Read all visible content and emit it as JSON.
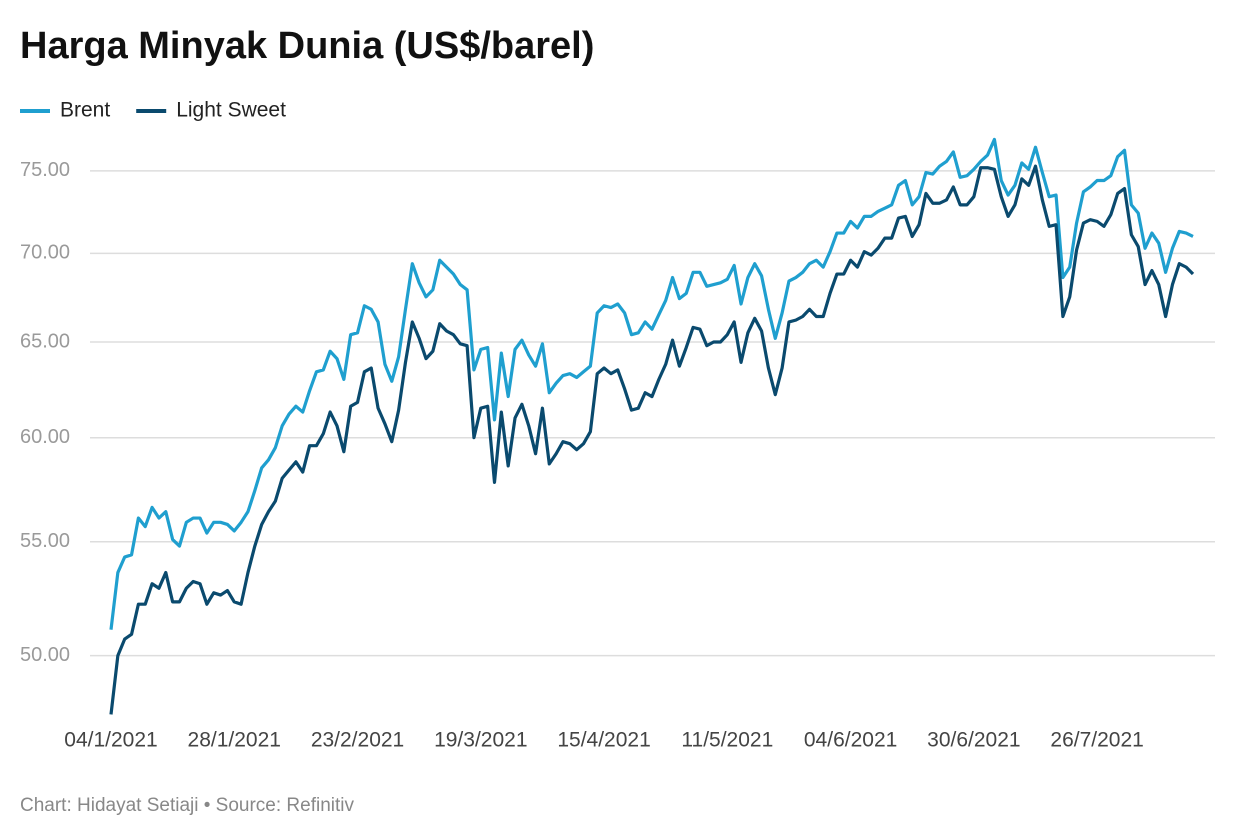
{
  "chart_data": {
    "type": "line",
    "title": "Harga Minyak Dunia (US$/barel)",
    "source": "Chart: Hidayat Setiaji • Source: Refinitiv",
    "legend": "top-left",
    "log_scale": true,
    "grid": true,
    "categories": [
      "04/1/2021",
      null,
      null,
      null,
      null,
      null,
      null,
      null,
      null,
      null,
      null,
      null,
      null,
      null,
      null,
      null,
      null,
      null,
      "28/1/2021",
      null,
      null,
      null,
      null,
      null,
      null,
      null,
      null,
      null,
      null,
      null,
      null,
      null,
      null,
      null,
      null,
      null,
      "23/2/2021",
      null,
      null,
      null,
      null,
      null,
      null,
      null,
      null,
      null,
      null,
      null,
      null,
      null,
      null,
      null,
      null,
      null,
      "19/3/2021",
      null,
      null,
      null,
      null,
      null,
      null,
      null,
      null,
      null,
      null,
      null,
      null,
      null,
      null,
      null,
      null,
      null,
      "15/4/2021",
      null,
      null,
      null,
      null,
      null,
      null,
      null,
      null,
      null,
      null,
      null,
      null,
      null,
      null,
      null,
      null,
      null,
      "11/5/2021",
      null,
      null,
      null,
      null,
      null,
      null,
      null,
      null,
      null,
      null,
      null,
      null,
      null,
      null,
      null,
      null,
      null,
      "04/6/2021",
      null,
      null,
      null,
      null,
      null,
      null,
      null,
      null,
      null,
      null,
      null,
      null,
      null,
      null,
      null,
      null,
      null,
      "30/6/2021",
      null,
      null,
      null,
      null,
      null,
      null,
      null,
      null,
      null,
      null,
      null,
      null,
      null,
      null,
      null,
      null,
      null,
      "26/7/2021",
      null,
      null,
      null,
      null,
      null,
      null,
      null,
      null,
      null,
      null,
      null,
      null,
      null,
      null
    ],
    "series": [
      {
        "name": "Brent",
        "color": "#1f9fcf",
        "values": [
          51.1,
          53.6,
          54.3,
          54.4,
          56.1,
          55.7,
          56.6,
          56.1,
          56.4,
          55.1,
          54.8,
          55.9,
          56.1,
          56.1,
          55.4,
          55.9,
          55.9,
          55.8,
          55.5,
          55.9,
          56.4,
          57.4,
          58.5,
          58.9,
          59.5,
          60.6,
          61.2,
          61.6,
          61.3,
          62.4,
          63.4,
          63.5,
          64.5,
          64.1,
          63.0,
          65.4,
          65.5,
          67.0,
          66.8,
          66.1,
          63.8,
          62.9,
          64.2,
          66.8,
          69.4,
          68.3,
          67.5,
          67.9,
          69.6,
          69.2,
          68.8,
          68.2,
          67.9,
          63.5,
          64.6,
          64.7,
          60.9,
          64.4,
          62.1,
          64.6,
          65.1,
          64.3,
          63.7,
          64.9,
          62.3,
          62.8,
          63.2,
          63.3,
          63.1,
          63.4,
          63.7,
          66.6,
          67.0,
          66.9,
          67.1,
          66.6,
          65.4,
          65.5,
          66.1,
          65.7,
          66.5,
          67.3,
          68.6,
          67.4,
          67.7,
          68.9,
          68.9,
          68.1,
          68.2,
          68.3,
          68.5,
          69.3,
          67.1,
          68.6,
          69.4,
          68.7,
          66.8,
          65.2,
          66.6,
          68.4,
          68.6,
          68.9,
          69.4,
          69.6,
          69.2,
          70.1,
          71.2,
          71.2,
          71.9,
          71.5,
          72.2,
          72.2,
          72.5,
          72.7,
          72.9,
          74.1,
          74.4,
          72.9,
          73.4,
          74.9,
          74.8,
          75.3,
          75.6,
          76.2,
          74.6,
          74.7,
          75.1,
          75.6,
          76.0,
          77.0,
          74.4,
          73.5,
          74.1,
          75.5,
          75.1,
          76.5,
          74.9,
          73.4,
          73.5,
          68.6,
          69.2,
          71.8,
          73.7,
          74.0,
          74.4,
          74.4,
          74.7,
          75.9,
          76.3,
          72.9,
          72.4,
          70.3,
          71.2,
          70.6,
          68.9,
          70.3,
          71.3,
          71.2,
          71.0
        ]
      },
      {
        "name": "Light Sweet",
        "color": "#0a4a6e",
        "values": [
          47.6,
          50.0,
          50.7,
          50.9,
          52.2,
          52.2,
          53.1,
          52.9,
          53.6,
          52.3,
          52.3,
          52.9,
          53.2,
          53.1,
          52.2,
          52.7,
          52.6,
          52.8,
          52.3,
          52.2,
          53.6,
          54.8,
          55.8,
          56.4,
          56.9,
          58.0,
          58.4,
          58.8,
          58.3,
          59.6,
          59.6,
          60.2,
          61.3,
          60.6,
          59.3,
          61.6,
          61.8,
          63.4,
          63.6,
          61.5,
          60.7,
          59.8,
          61.4,
          63.9,
          66.1,
          65.2,
          64.1,
          64.5,
          66.0,
          65.6,
          65.4,
          64.9,
          64.8,
          60.0,
          61.5,
          61.6,
          57.8,
          61.3,
          58.6,
          61.0,
          61.7,
          60.6,
          59.2,
          61.5,
          58.7,
          59.2,
          59.8,
          59.7,
          59.4,
          59.7,
          60.3,
          63.3,
          63.6,
          63.3,
          63.5,
          62.5,
          61.4,
          61.5,
          62.3,
          62.1,
          63.0,
          63.8,
          65.1,
          63.7,
          64.7,
          65.8,
          65.7,
          64.8,
          65.0,
          65.0,
          65.4,
          66.1,
          63.9,
          65.5,
          66.3,
          65.6,
          63.6,
          62.2,
          63.6,
          66.1,
          66.2,
          66.4,
          66.8,
          66.4,
          66.4,
          67.7,
          68.8,
          68.8,
          69.6,
          69.2,
          70.1,
          69.9,
          70.3,
          70.9,
          70.9,
          72.1,
          72.2,
          71.0,
          71.7,
          73.6,
          73.0,
          73.0,
          73.2,
          74.0,
          72.9,
          72.9,
          73.4,
          75.2,
          75.2,
          75.1,
          73.4,
          72.2,
          72.9,
          74.5,
          74.1,
          75.3,
          73.2,
          71.6,
          71.7,
          66.4,
          67.5,
          70.2,
          71.8,
          72.0,
          71.9,
          71.6,
          72.3,
          73.6,
          73.9,
          71.1,
          70.4,
          68.2,
          69.0,
          68.2,
          66.4,
          68.2,
          69.4,
          69.2,
          68.8
        ]
      }
    ],
    "ylim": [
      47.5,
      77.5
    ],
    "yticks": [
      {
        "value": 50,
        "label": "50.00"
      },
      {
        "value": 55,
        "label": "55.00"
      },
      {
        "value": 60,
        "label": "60.00"
      },
      {
        "value": 65,
        "label": "65.00"
      },
      {
        "value": 70,
        "label": "70.00"
      },
      {
        "value": 75,
        "label": "75.00"
      }
    ]
  }
}
